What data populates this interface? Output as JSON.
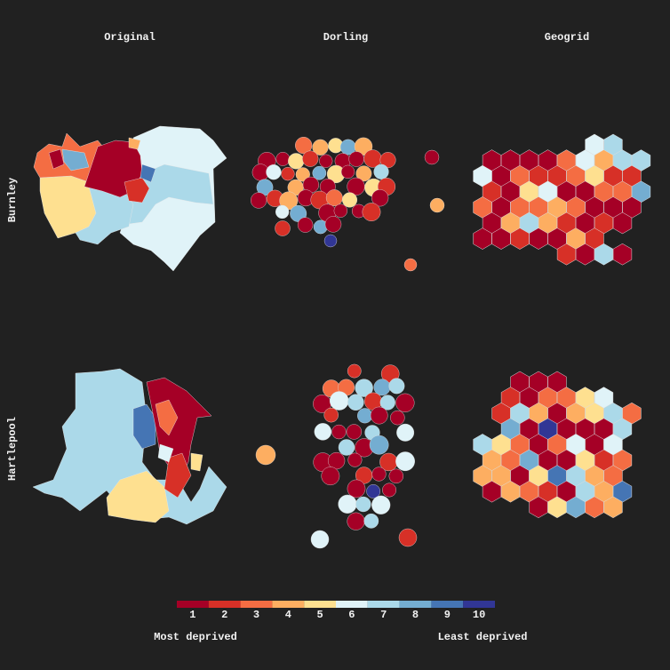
{
  "columns": [
    "Original",
    "Dorling",
    "Geogrid"
  ],
  "rows": [
    "Burnley",
    "Hartlepool"
  ],
  "legend": {
    "labels": [
      1,
      2,
      3,
      4,
      5,
      6,
      7,
      8,
      9,
      10
    ],
    "colors": [
      "#a50026",
      "#d73027",
      "#f46d43",
      "#fdae61",
      "#fee090",
      "#e0f3f8",
      "#abd9e9",
      "#74add1",
      "#4575b4",
      "#313695"
    ],
    "low": "Most deprived",
    "high": "Least deprived"
  }
}
